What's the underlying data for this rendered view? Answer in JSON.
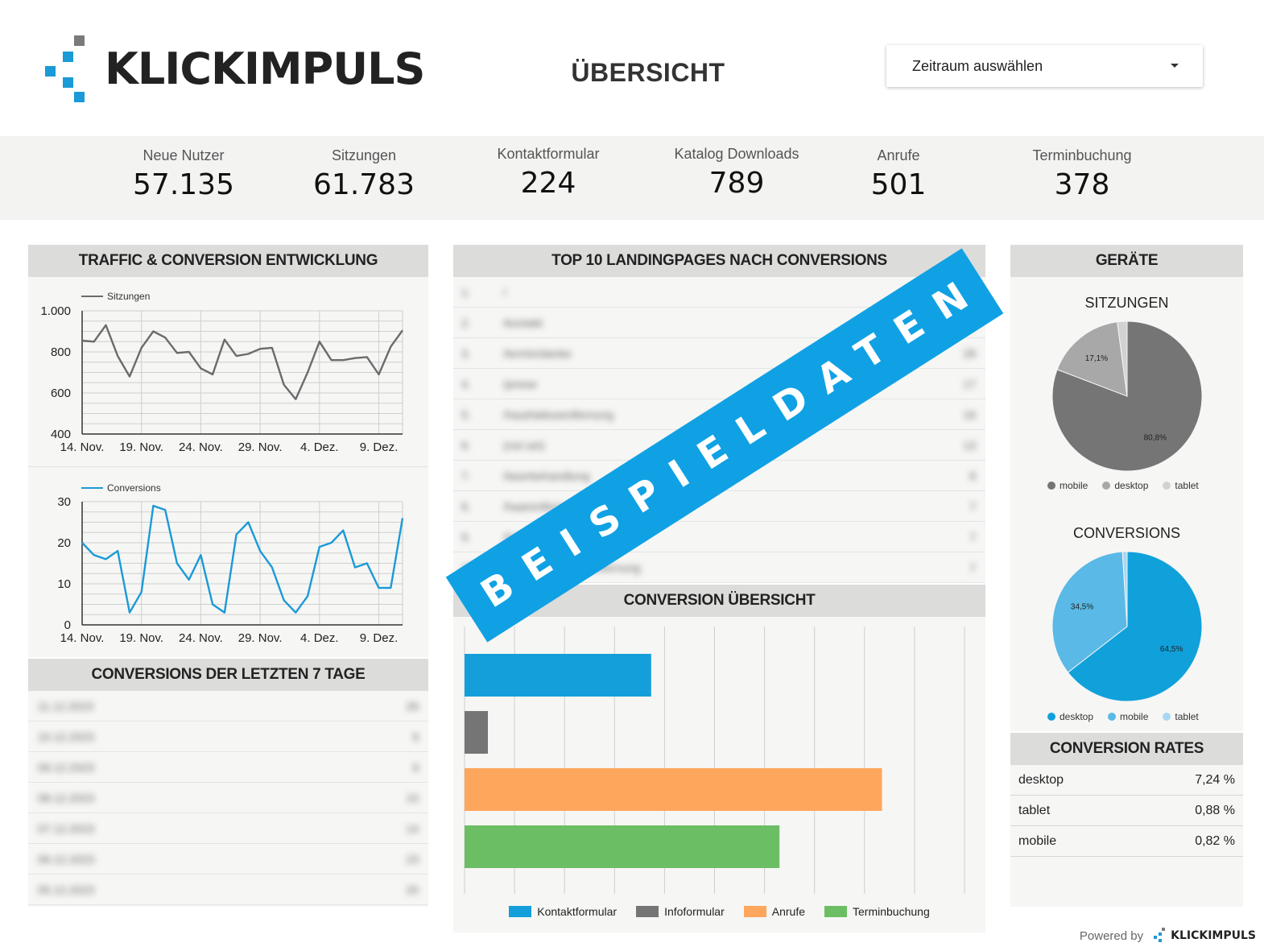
{
  "brand": {
    "name": "KLICKIMPULS",
    "accent": "#1a9ad6",
    "gray": "#7a7a7a"
  },
  "header": {
    "title": "ÜBERSICHT",
    "date_select": {
      "label": "Zeitraum auswählen"
    }
  },
  "kpis": [
    {
      "label": "Neue Nutzer",
      "value": "57.135"
    },
    {
      "label": "Sitzungen",
      "value": "61.783"
    },
    {
      "label": "Kontaktformular",
      "value": "224"
    },
    {
      "label": "Katalog Downloads",
      "value": "789"
    },
    {
      "label": "Anrufe",
      "value": "501"
    },
    {
      "label": "Terminbuchung",
      "value": "378"
    }
  ],
  "traffic_panel": {
    "title": "TRAFFIC & CONVERSION ENTWICKLUNG"
  },
  "last7_panel": {
    "title": "CONVERSIONS DER LETZTEN 7 TAGE",
    "rows": [
      {
        "date": "11.12.2023",
        "value": "26"
      },
      {
        "date": "10.12.2023",
        "value": "9"
      },
      {
        "date": "09.12.2023",
        "value": "9"
      },
      {
        "date": "08.12.2023",
        "value": "15"
      },
      {
        "date": "07.12.2023",
        "value": "14"
      },
      {
        "date": "06.12.2023",
        "value": "23"
      },
      {
        "date": "05.12.2023",
        "value": "20"
      }
    ]
  },
  "landingpages_panel": {
    "title": "TOP 10 LANDINGPAGES NACH CONVERSIONS",
    "rows": [
      {
        "rank": "1.",
        "page": "/",
        "value": ""
      },
      {
        "rank": "2.",
        "page": "/kontakt",
        "value": ""
      },
      {
        "rank": "3.",
        "page": "/termin/danke",
        "value": "28"
      },
      {
        "rank": "4.",
        "page": "/preise",
        "value": "17"
      },
      {
        "rank": "5.",
        "page": "/haut/tattooentfernung",
        "value": "16"
      },
      {
        "rank": "6.",
        "page": "(not set)",
        "value": "13"
      },
      {
        "rank": "7.",
        "page": "/laserbehandlung",
        "value": "8"
      },
      {
        "rank": "8.",
        "page": "/haarentfernung",
        "value": "7"
      },
      {
        "rank": "9.",
        "page": "/hautbehandlung-nach-op",
        "value": "7"
      },
      {
        "rank": "10.",
        "page": "/dauerhafte-haarentfernung",
        "value": "7"
      }
    ]
  },
  "conversion_overview": {
    "title": "CONVERSION ÜBERSICHT"
  },
  "devices_panel": {
    "title": "GERÄTE",
    "sessions_title": "SITZUNGEN",
    "conversions_title": "CONVERSIONS",
    "sessions_legend": [
      "mobile",
      "desktop",
      "tablet"
    ],
    "conversions_legend": [
      "desktop",
      "mobile",
      "tablet"
    ]
  },
  "rates_panel": {
    "title": "CONVERSION RATES",
    "rows": [
      {
        "device": "desktop",
        "rate": "7,24 %"
      },
      {
        "device": "tablet",
        "rate": "0,88 %"
      },
      {
        "device": "mobile",
        "rate": "0,82 %"
      }
    ]
  },
  "watermark": "BEISPIELDATEN",
  "footer": {
    "powered_by": "Powered by",
    "brand": "KLICKIMPULS"
  },
  "chart_data": [
    {
      "type": "line",
      "title": "Sitzungen",
      "x_tick_labels": [
        "14. Nov.",
        "19. Nov.",
        "24. Nov.",
        "29. Nov.",
        "4. Dez.",
        "9. Dez."
      ],
      "y_tick_labels": [
        "1.000",
        "800",
        "600",
        "400"
      ],
      "ylim": [
        400,
        1000
      ],
      "series": [
        {
          "name": "Sitzungen",
          "color": "#6b6b6b",
          "values": [
            855,
            850,
            930,
            780,
            680,
            820,
            900,
            870,
            795,
            800,
            720,
            690,
            860,
            780,
            790,
            815,
            820,
            640,
            570,
            700,
            850,
            760,
            760,
            770,
            775,
            690,
            825,
            905
          ]
        }
      ]
    },
    {
      "type": "line",
      "title": "Conversions",
      "x_tick_labels": [
        "14. Nov.",
        "19. Nov.",
        "24. Nov.",
        "29. Nov.",
        "4. Dez.",
        "9. Dez."
      ],
      "y_tick_labels": [
        "30",
        "20",
        "10",
        "0"
      ],
      "ylim": [
        0,
        30
      ],
      "series": [
        {
          "name": "Conversions",
          "color": "#1a9ad6",
          "values": [
            20,
            17,
            16,
            18,
            3,
            8,
            29,
            28,
            15,
            11,
            17,
            5,
            3,
            22,
            25,
            18,
            14,
            6,
            3,
            7,
            19,
            20,
            23,
            14,
            15,
            9,
            9,
            26
          ]
        }
      ]
    },
    {
      "type": "bar",
      "title": "CONVERSION ÜBERSICHT",
      "categories": [
        "Kontaktformular",
        "Infoformular",
        "Anrufe",
        "Terminbuchung"
      ],
      "values": [
        224,
        28,
        501,
        378
      ],
      "colors": [
        "#149fdb",
        "#757575",
        "#fda65c",
        "#6cbe65"
      ]
    },
    {
      "type": "pie",
      "title": "SITZUNGEN",
      "labels": [
        "mobile",
        "desktop",
        "tablet"
      ],
      "values": [
        80.8,
        17.1,
        2.1
      ],
      "value_labels": [
        "80,8%",
        "17,1%",
        ""
      ],
      "colors": [
        "#757575",
        "#a8a8a8",
        "#d2d2d2"
      ]
    },
    {
      "type": "pie",
      "title": "CONVERSIONS",
      "labels": [
        "desktop",
        "mobile",
        "tablet"
      ],
      "values": [
        64.5,
        34.5,
        1.0
      ],
      "value_labels": [
        "64,5%",
        "34,5%",
        ""
      ],
      "colors": [
        "#10a1db",
        "#5ab9e6",
        "#a8d8f2"
      ]
    }
  ]
}
